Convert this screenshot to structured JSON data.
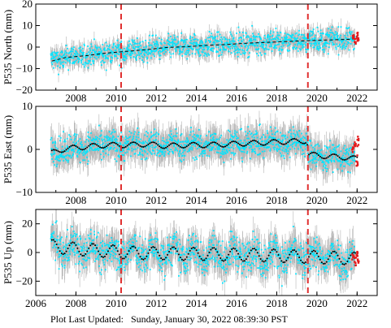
{
  "footer": {
    "label": "Plot Last Updated:",
    "timestamp": "Sunday, January 30, 2022 08:39:30 PST"
  },
  "colors": {
    "errorbar": "#b4b4b4",
    "daily": "#00e5ff",
    "recent": "#e31a1c",
    "model": "#000000",
    "event_line": "#e03030"
  },
  "chart_data": [
    {
      "type": "scatter",
      "ylabel": "P535 North (mm)",
      "xlim": [
        2006,
        2023
      ],
      "ylim": [
        -20,
        20
      ],
      "yticks": [
        -20,
        -10,
        0,
        10,
        20
      ],
      "xticks": [
        2008,
        2010,
        2012,
        2014,
        2016,
        2018,
        2020,
        2022
      ],
      "xtick_labels_shown": false,
      "event_lines": [
        2010.25,
        2019.55
      ],
      "series": [
        {
          "style": "model-dashed",
          "x": [
            2006.8,
            2007.5,
            2008.5,
            2009.5,
            2010.5,
            2011.5,
            2012.5,
            2013.5,
            2014.5,
            2015.5,
            2016.5,
            2017.5,
            2018.5,
            2019.5,
            2020.5,
            2021.5,
            2022.0
          ],
          "y": [
            -6.5,
            -4.8,
            -4.0,
            -2.8,
            -2.0,
            -1.2,
            -0.2,
            0.2,
            0.8,
            1.2,
            1.8,
            2.2,
            2.6,
            3.0,
            3.3,
            3.6,
            3.8
          ]
        }
      ],
      "recent_points": {
        "x": [
          2021.8,
          2021.9,
          2022.0,
          2022.05
        ],
        "y": [
          4.5,
          3.0,
          5.0,
          3.5
        ]
      }
    },
    {
      "type": "scatter",
      "ylabel": "P535 East (mm)",
      "xlim": [
        2006,
        2023
      ],
      "ylim": [
        -10,
        10
      ],
      "yticks": [
        -10,
        0,
        10
      ],
      "xticks": [
        2008,
        2010,
        2012,
        2014,
        2016,
        2018,
        2020,
        2022
      ],
      "xtick_labels_shown": false,
      "event_lines": [
        2010.25,
        2019.55
      ],
      "series": [
        {
          "style": "model-dotted",
          "x": [
            2006.8,
            2007.5,
            2008.5,
            2009.5,
            2010.5,
            2011.5,
            2012.5,
            2013.5,
            2014.5,
            2015.5,
            2016.5,
            2017.5,
            2018.5,
            2019.5,
            2019.6,
            2020.5,
            2021.5,
            2022.0
          ],
          "y": [
            -0.8,
            0.2,
            0.6,
            1.0,
            1.0,
            1.2,
            0.8,
            1.0,
            1.0,
            1.2,
            1.4,
            1.6,
            1.8,
            2.0,
            -1.2,
            -1.6,
            -1.9,
            -2.2
          ]
        }
      ],
      "recent_points": {
        "x": [
          2021.8,
          2021.9,
          2022.0,
          2022.05
        ],
        "y": [
          -0.5,
          1.0,
          -2.5,
          2.0
        ]
      }
    },
    {
      "type": "scatter",
      "ylabel": "P535 Up (mm)",
      "xlim": [
        2006,
        2023
      ],
      "ylim": [
        -30,
        30
      ],
      "yticks": [
        -20,
        0,
        20
      ],
      "xticks": [
        2006,
        2008,
        2010,
        2012,
        2014,
        2016,
        2018,
        2020,
        2022
      ],
      "xtick_labels_shown": true,
      "event_lines": [
        2010.25,
        2019.55
      ],
      "series": [
        {
          "style": "model-dotted-seasonal",
          "x": [
            2006.8,
            2007.5,
            2008.5,
            2009.5,
            2010.5,
            2011.5,
            2012.5,
            2013.5,
            2014.5,
            2015.5,
            2016.5,
            2017.5,
            2018.5,
            2019.5,
            2020.5,
            2021.5,
            2022.0
          ],
          "y": [
            4.5,
            3.0,
            2.0,
            1.0,
            0.0,
            -0.5,
            -0.5,
            -1.0,
            -1.0,
            -1.5,
            -1.5,
            -2.0,
            -2.5,
            -3.0,
            -3.5,
            -4.0,
            -4.5
          ]
        }
      ],
      "recent_points": {
        "x": [
          2021.8,
          2021.9,
          2022.0,
          2022.05
        ],
        "y": [
          -3.0,
          -7.0,
          -1.0,
          -5.0
        ]
      }
    }
  ]
}
